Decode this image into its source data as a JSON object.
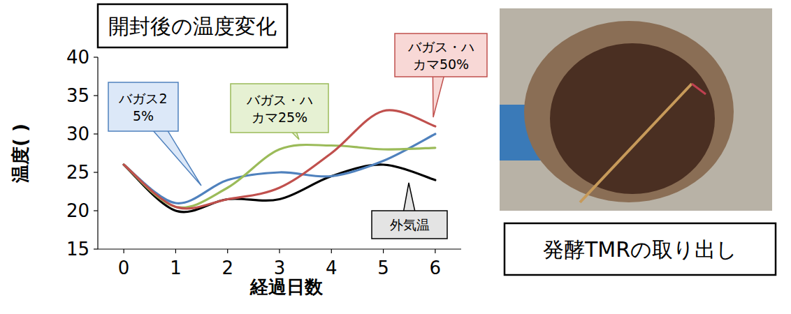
{
  "chart_data": {
    "type": "line",
    "title": "開封後の温度変化",
    "x_label": "経過日数",
    "y_label": "温度( )",
    "x": [
      0,
      1,
      2,
      3,
      4,
      5,
      6
    ],
    "xlim": [
      -0.5,
      6.5
    ],
    "xticks": [
      0,
      1,
      2,
      3,
      4,
      5,
      6
    ],
    "ylim": [
      15,
      40
    ],
    "yticks": [
      15,
      20,
      25,
      30,
      35,
      40
    ],
    "grid": false,
    "line_style": "smooth",
    "marker": "none",
    "series": [
      {
        "name": "外気温",
        "color": "#000000",
        "values": [
          26,
          20,
          21.5,
          21.5,
          24.5,
          26,
          24
        ]
      },
      {
        "name": "バガス25%",
        "color": "#4f81bd",
        "values": [
          26,
          21,
          24,
          25,
          24.5,
          26.5,
          30
        ]
      },
      {
        "name": "バガス・ハカマ25%",
        "color": "#9bbb59",
        "values": [
          26,
          20.5,
          23,
          28,
          28.5,
          28,
          28.2
        ]
      },
      {
        "name": "バガス・ハカマ50%",
        "color": "#c0504d",
        "values": [
          26,
          20.5,
          21.5,
          23,
          27.5,
          33,
          31
        ]
      }
    ]
  },
  "photo": {
    "caption": "発酵TMRの取り出し"
  }
}
